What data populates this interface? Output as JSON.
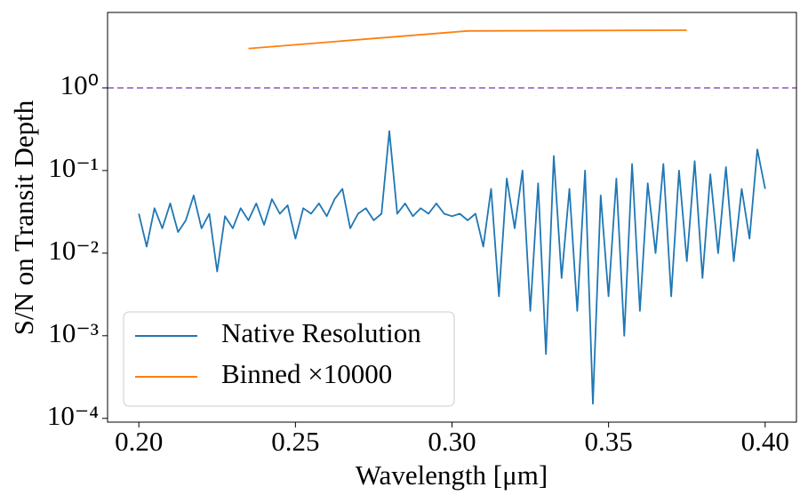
{
  "chart_data": {
    "type": "line",
    "xlabel": "Wavelength [μm]",
    "ylabel": "S/N on Transit Depth",
    "xlim": [
      0.19,
      0.41
    ],
    "xticks": [
      {
        "value": 0.2,
        "label": "0.20"
      },
      0.25,
      {
        "value": 0.3,
        "label": "0.30"
      },
      0.35,
      {
        "value": 0.4,
        "label": "0.40"
      }
    ],
    "ylim": [
      9e-05,
      8.2
    ],
    "yscale": "log",
    "yticks": [
      {
        "value": 1,
        "label": "10⁰"
      },
      {
        "value": 0.1,
        "label": "10⁻¹"
      },
      {
        "value": 0.01,
        "label": "10⁻²"
      },
      {
        "value": 0.001,
        "label": "10⁻³"
      },
      {
        "value": 0.0001,
        "label": "10⁻⁴"
      }
    ],
    "hline": {
      "value": 1,
      "color": "#9467bd"
    },
    "legend": "lower left",
    "series": [
      {
        "name": "Native Resolution",
        "color": "#1f77b4",
        "x": [
          0.2,
          0.2025,
          0.205,
          0.2075,
          0.21,
          0.2125,
          0.215,
          0.2175,
          0.22,
          0.2225,
          0.225,
          0.2275,
          0.23,
          0.2325,
          0.235,
          0.2375,
          0.24,
          0.2425,
          0.245,
          0.2475,
          0.25,
          0.2525,
          0.255,
          0.2575,
          0.26,
          0.2625,
          0.265,
          0.2675,
          0.27,
          0.2725,
          0.275,
          0.2775,
          0.28,
          0.2825,
          0.285,
          0.2875,
          0.29,
          0.2925,
          0.295,
          0.2975,
          0.3,
          0.3025,
          0.305,
          0.3075,
          0.31,
          0.3125,
          0.315,
          0.3175,
          0.32,
          0.3225,
          0.325,
          0.3275,
          0.33,
          0.3325,
          0.335,
          0.3375,
          0.34,
          0.3425,
          0.345,
          0.3475,
          0.35,
          0.3525,
          0.355,
          0.3575,
          0.36,
          0.3625,
          0.365,
          0.3675,
          0.37,
          0.3725,
          0.375,
          0.3775,
          0.38,
          0.3825,
          0.385,
          0.3875,
          0.39,
          0.3925,
          0.395,
          0.3975,
          0.4
        ],
        "values": [
          0.03,
          0.012,
          0.035,
          0.02,
          0.04,
          0.018,
          0.025,
          0.05,
          0.02,
          0.03,
          0.006,
          0.028,
          0.02,
          0.035,
          0.025,
          0.04,
          0.022,
          0.045,
          0.03,
          0.038,
          0.015,
          0.035,
          0.03,
          0.04,
          0.028,
          0.045,
          0.06,
          0.02,
          0.03,
          0.035,
          0.025,
          0.03,
          0.3,
          0.03,
          0.04,
          0.028,
          0.035,
          0.03,
          0.04,
          0.03,
          0.028,
          0.03,
          0.025,
          0.03,
          0.012,
          0.06,
          0.003,
          0.08,
          0.02,
          0.1,
          0.002,
          0.07,
          0.0006,
          0.15,
          0.005,
          0.06,
          0.002,
          0.1,
          0.00015,
          0.05,
          0.003,
          0.08,
          0.001,
          0.12,
          0.002,
          0.07,
          0.01,
          0.12,
          0.003,
          0.1,
          0.008,
          0.13,
          0.005,
          0.09,
          0.01,
          0.11,
          0.008,
          0.06,
          0.015,
          0.18,
          0.06
        ]
      },
      {
        "name": "Binned ×10000",
        "color": "#ff7f0e",
        "x": [
          0.235,
          0.305,
          0.375
        ],
        "values": [
          3.0,
          4.9,
          5.0
        ]
      }
    ]
  }
}
